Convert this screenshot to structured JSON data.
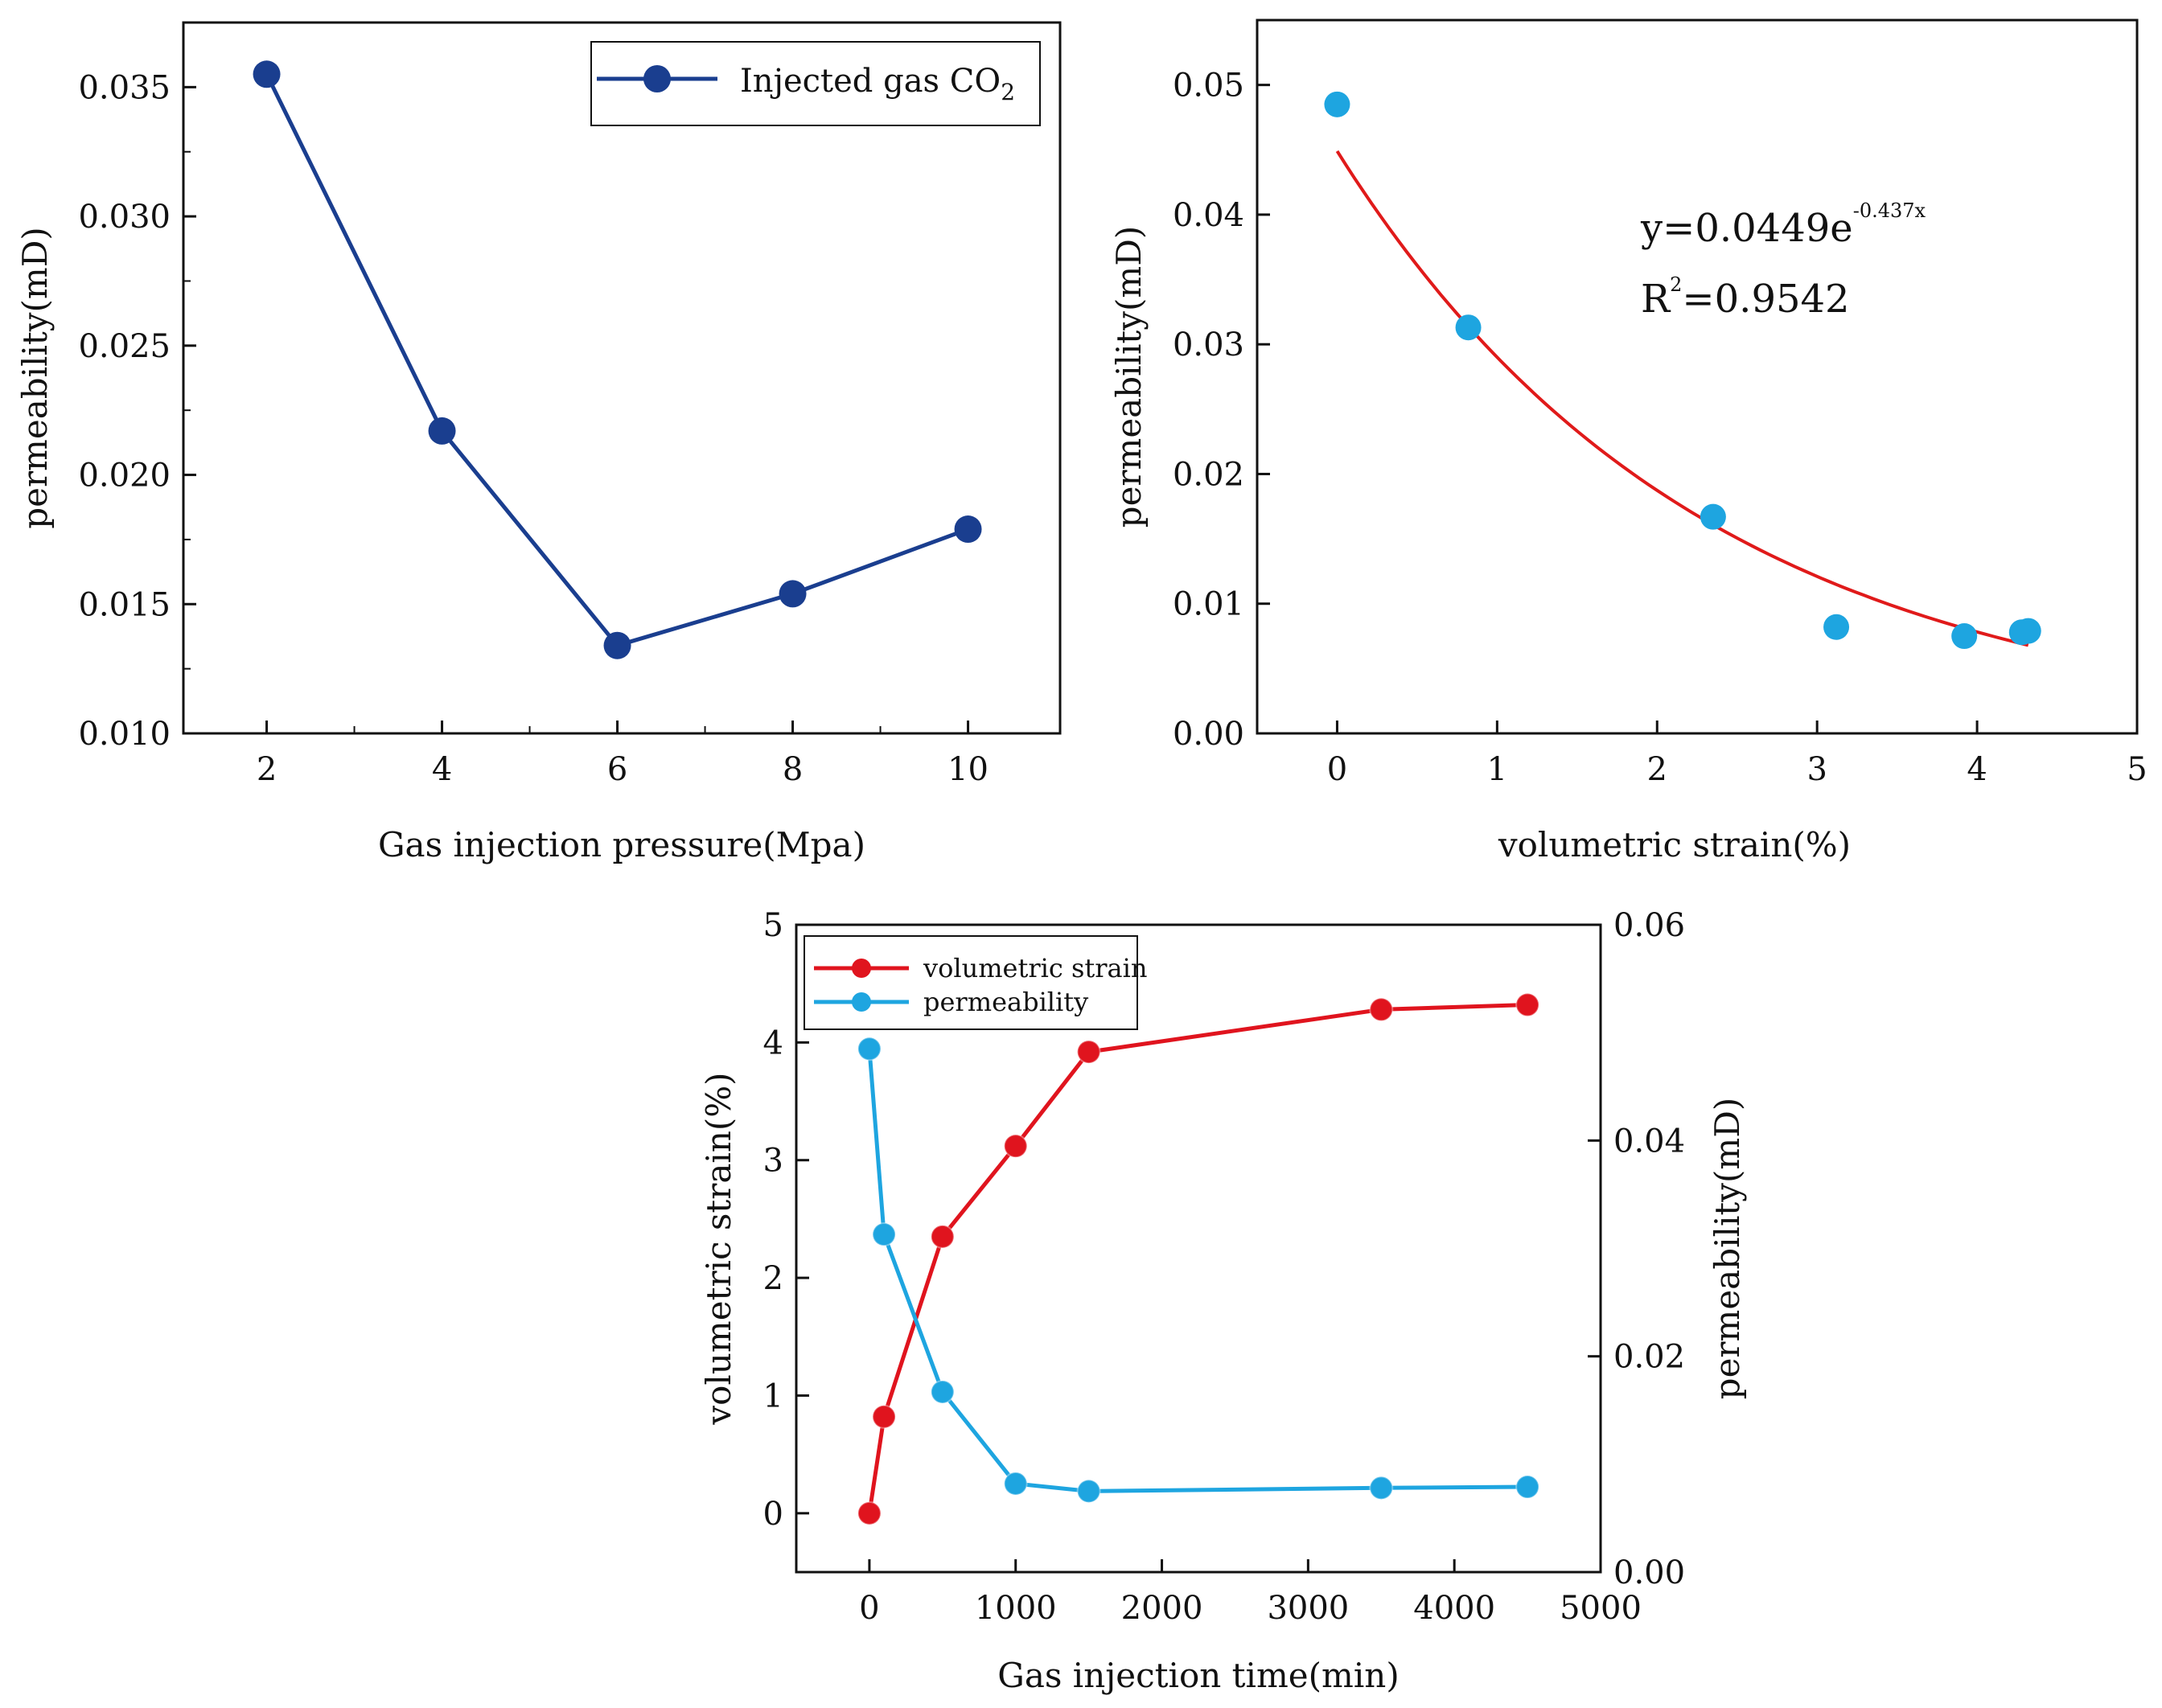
{
  "chart_data": [
    {
      "type": "line",
      "title": "",
      "xlabel": "Gas injection pressure(Mpa)",
      "ylabel": "permeability(mD)",
      "xlim": [
        1.05,
        11.05
      ],
      "ylim": [
        0.01,
        0.0375
      ],
      "xticks": [
        2,
        4,
        6,
        8,
        10
      ],
      "yticks": [
        0.01,
        0.015,
        0.02,
        0.025,
        0.03,
        0.035
      ],
      "ytick_labels": [
        "0.010",
        "0.015",
        "0.020",
        "0.025",
        "0.030",
        "0.035"
      ],
      "series": [
        {
          "name": "Injected gas CO",
          "name_sub": "2",
          "color": "#1a3e8f",
          "x": [
            2,
            4,
            6,
            8,
            10
          ],
          "y": [
            0.0355,
            0.0217,
            0.0134,
            0.0154,
            0.0179
          ]
        }
      ],
      "legend": "top-right"
    },
    {
      "type": "scatter",
      "title": "",
      "xlabel": "volumetric strain(%)",
      "ylabel": "permeability(mD)",
      "xlim": [
        -0.5,
        5
      ],
      "ylim": [
        0,
        0.055
      ],
      "xticks": [
        0,
        1,
        2,
        3,
        4,
        5
      ],
      "yticks": [
        0,
        0.01,
        0.02,
        0.03,
        0.04,
        0.05
      ],
      "ytick_labels": [
        "0.00",
        "0.01",
        "0.02",
        "0.03",
        "0.04",
        "0.05"
      ],
      "points": {
        "color": "#1ea5e0",
        "x": [
          0,
          0.82,
          2.35,
          3.12,
          3.92,
          4.28,
          4.32
        ],
        "y": [
          0.0485,
          0.0313,
          0.0167,
          0.0082,
          0.0075,
          0.0078,
          0.0079
        ]
      },
      "fit": {
        "color": "#e01a1a",
        "coef": 0.0449,
        "rate": -0.437,
        "x_range": [
          0,
          4.32
        ],
        "equation_prefix": "y=0.0449e",
        "equation_exponent": "-0.437x",
        "r2_prefix": "R",
        "r2_sup": "2",
        "r2_value": "=0.9542"
      }
    },
    {
      "type": "line",
      "title": "",
      "xlabel": "Gas injection time(min)",
      "ylabel_left": "volumetric strain(%)",
      "ylabel_right": "permeability(mD)",
      "xlim": [
        -500,
        5000
      ],
      "ylim_left": [
        -0.5,
        5
      ],
      "ylim_right": [
        0,
        0.06
      ],
      "xticks": [
        0,
        1000,
        2000,
        3000,
        4000,
        5000
      ],
      "yticks_left": [
        0,
        1,
        2,
        3,
        4,
        5
      ],
      "yticks_right": [
        0,
        0.02,
        0.04,
        0.06
      ],
      "ytick_labels_right": [
        "0.00",
        "0.02",
        "0.04",
        "0.06"
      ],
      "series": [
        {
          "name": "volumetric strain",
          "axis": "left",
          "color": "#e0141e",
          "x": [
            0,
            100,
            500,
            1000,
            1500,
            3500,
            4500
          ],
          "y": [
            0,
            0.82,
            2.35,
            3.12,
            3.92,
            4.28,
            4.32
          ]
        },
        {
          "name": "permeability",
          "axis": "right",
          "color": "#1ea5e0",
          "x": [
            0,
            100,
            500,
            1000,
            1500,
            3500,
            4500
          ],
          "y": [
            0.0485,
            0.0313,
            0.0167,
            0.0082,
            0.0075,
            0.0078,
            0.0079
          ]
        }
      ],
      "legend": "top-left"
    }
  ]
}
